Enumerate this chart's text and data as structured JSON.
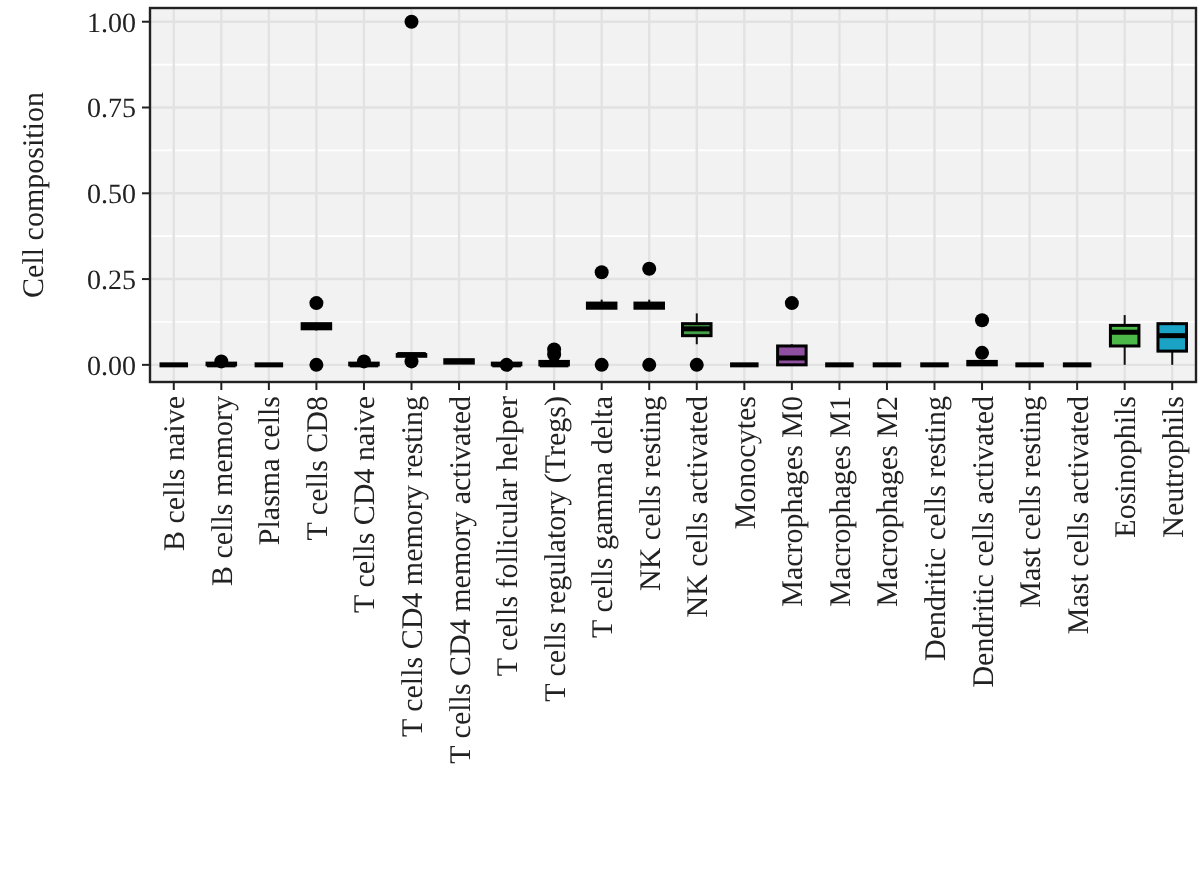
{
  "chart_data": {
    "type": "box",
    "ylabel": "Cell composition",
    "categories": [
      "B cells naive",
      "B cells memory",
      "Plasma cells",
      "T cells CD8",
      "T cells CD4 naive",
      "T cells CD4 memory resting",
      "T cells CD4 memory activated",
      "T cells follicular helper",
      "T cells regulatory (Tregs)",
      "T cells gamma delta",
      "NK cells resting",
      "NK cells activated",
      "Monocytes",
      "Macrophages M0",
      "Macrophages M1",
      "Macrophages M2",
      "Dendritic cells resting",
      "Dendritic cells activated",
      "Mast cells resting",
      "Mast cells activated",
      "Eosinophils",
      "Neutrophils"
    ],
    "boxes": [
      {
        "low": 0,
        "q1": 0,
        "median": 0,
        "q3": 0,
        "high": 0
      },
      {
        "low": 0,
        "q1": 0,
        "median": 0,
        "q3": 0.005,
        "high": 0.005,
        "outliers": [
          0.01
        ]
      },
      {
        "low": 0,
        "q1": 0,
        "median": 0,
        "q3": 0,
        "high": 0
      },
      {
        "low": 0.1,
        "q1": 0.105,
        "median": 0.11,
        "q3": 0.12,
        "high": 0.12,
        "outliers": [
          0.18,
          0
        ]
      },
      {
        "low": 0,
        "q1": 0,
        "median": 0,
        "q3": 0.005,
        "high": 0.005,
        "outliers": [
          0.01
        ]
      },
      {
        "low": 0.02,
        "q1": 0.025,
        "median": 0.03,
        "q3": 0.03,
        "high": 0.03,
        "outliers": [
          1.0,
          0.01
        ]
      },
      {
        "low": 0.005,
        "q1": 0.005,
        "median": 0.01,
        "q3": 0.015,
        "high": 0.015
      },
      {
        "low": 0,
        "q1": 0,
        "median": 0,
        "q3": 0.005,
        "high": 0.005,
        "outliers": [
          0
        ]
      },
      {
        "low": 0,
        "q1": 0,
        "median": 0,
        "q3": 0.01,
        "high": 0.01,
        "outliers": [
          0.03,
          0.045
        ]
      },
      {
        "low": 0.165,
        "q1": 0.165,
        "median": 0.17,
        "q3": 0.18,
        "high": 0.19,
        "outliers": [
          0.27,
          0
        ]
      },
      {
        "low": 0.165,
        "q1": 0.165,
        "median": 0.17,
        "q3": 0.18,
        "high": 0.19,
        "outliers": [
          0.28,
          0
        ]
      },
      {
        "low": 0.06,
        "q1": 0.085,
        "median": 0.105,
        "q3": 0.12,
        "high": 0.15,
        "outliers": [
          0
        ]
      },
      {
        "low": 0,
        "q1": 0,
        "median": 0,
        "q3": 0,
        "high": 0
      },
      {
        "low": 0,
        "q1": 0,
        "median": 0.02,
        "q3": 0.055,
        "high": 0.06,
        "outliers": [
          0.18
        ]
      },
      {
        "low": 0,
        "q1": 0,
        "median": 0,
        "q3": 0,
        "high": 0
      },
      {
        "low": 0,
        "q1": 0,
        "median": 0,
        "q3": 0,
        "high": 0
      },
      {
        "low": 0,
        "q1": 0,
        "median": 0,
        "q3": 0,
        "high": 0
      },
      {
        "low": 0,
        "q1": 0,
        "median": 0.005,
        "q3": 0.01,
        "high": 0.01,
        "outliers": [
          0.13,
          0.035
        ]
      },
      {
        "low": 0,
        "q1": 0,
        "median": 0,
        "q3": 0,
        "high": 0
      },
      {
        "low": 0,
        "q1": 0,
        "median": 0,
        "q3": 0,
        "high": 0
      },
      {
        "low": 0,
        "q1": 0.055,
        "median": 0.095,
        "q3": 0.115,
        "high": 0.145
      },
      {
        "low": 0,
        "q1": 0.04,
        "median": 0.085,
        "q3": 0.12,
        "high": 0.125
      }
    ],
    "colors": [
      "#000000",
      "#000000",
      "#000000",
      "#000000",
      "#000000",
      "#000000",
      "#000000",
      "#000000",
      "#000000",
      "#000000",
      "#000000",
      "#44a048",
      "#000000",
      "#8e4fa0",
      "#000000",
      "#000000",
      "#000000",
      "#000000",
      "#000000",
      "#000000",
      "#4cb848",
      "#1ba3c6"
    ],
    "ylim": [
      -0.05,
      1.04
    ],
    "yticks": [
      {
        "value": 0,
        "label": "0.00"
      },
      {
        "value": 0.25,
        "label": "0.25"
      },
      {
        "value": 0.5,
        "label": "0.50"
      },
      {
        "value": 0.75,
        "label": "0.75"
      },
      {
        "value": 1,
        "label": "1.00"
      }
    ],
    "grid": true
  }
}
